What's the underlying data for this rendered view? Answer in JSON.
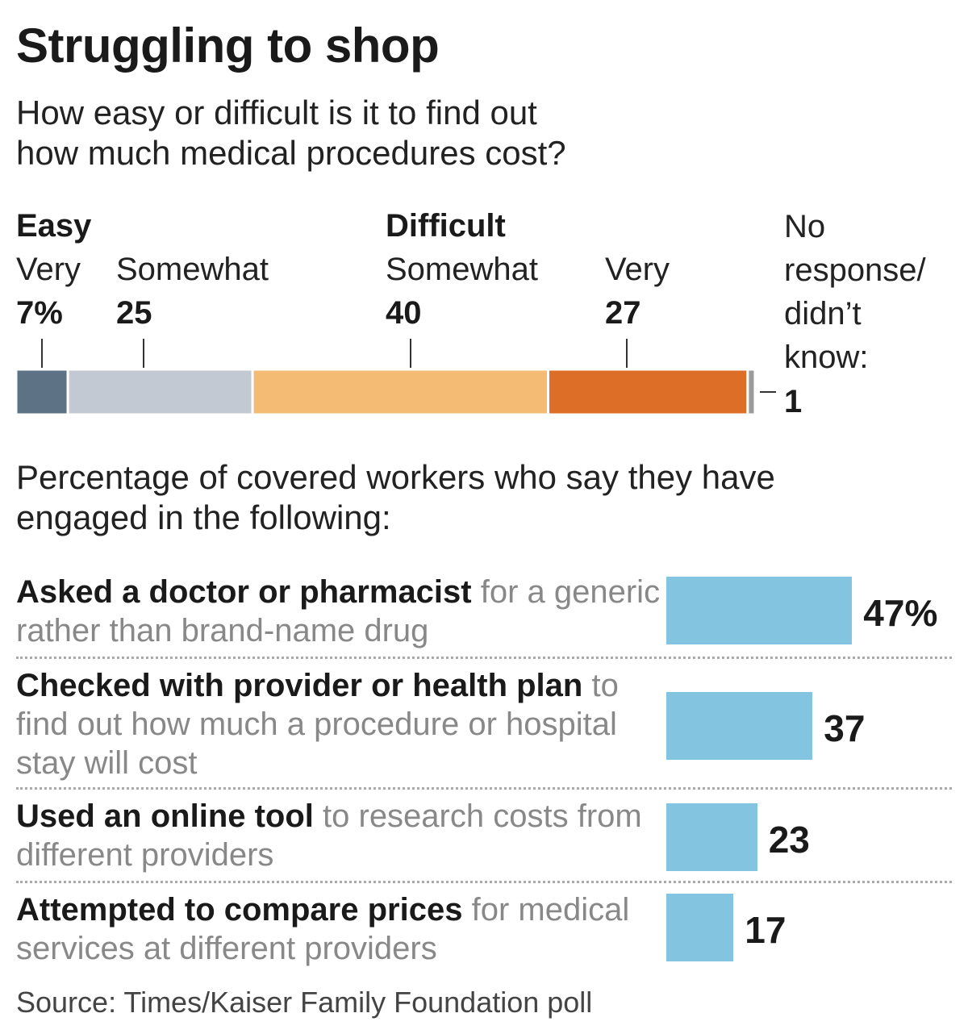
{
  "header": {
    "title": "Struggling to shop",
    "subtitle_lines": [
      "How easy or difficult is it to find out",
      "how much medical procedures cost?"
    ]
  },
  "chart_data": [
    {
      "type": "bar",
      "orientation": "horizontal-stacked",
      "title": "How easy or difficult is it to find out how much medical procedures cost?",
      "groups": [
        {
          "label": "Easy",
          "segments": [
            "Very",
            "Somewhat"
          ]
        },
        {
          "label": "Difficult",
          "segments": [
            "Somewhat",
            "Very"
          ]
        }
      ],
      "segments": [
        {
          "group": "Easy",
          "label": "Very",
          "value": 7,
          "display": "7%",
          "color": "#5d7385"
        },
        {
          "group": "Easy",
          "label": "Somewhat",
          "value": 25,
          "display": "25",
          "color": "#c3c9d2"
        },
        {
          "group": "Difficult",
          "label": "Somewhat",
          "value": 40,
          "display": "40",
          "color": "#f4bb74"
        },
        {
          "group": "Difficult",
          "label": "Very",
          "value": 27,
          "display": "27",
          "color": "#dd6e28"
        },
        {
          "group": "",
          "label_lines": [
            "No",
            "response/",
            "didn’t",
            "know:"
          ],
          "value": 1,
          "display": "1",
          "color": "#9b9b9b"
        }
      ],
      "xlim": [
        0,
        100
      ]
    },
    {
      "type": "bar",
      "orientation": "horizontal",
      "title": "Percentage of covered workers who say they have engaged in the following:",
      "title_lines": [
        "Percentage of covered workers who say they have",
        "engaged in the following:"
      ],
      "bar_color": "#83c5e0",
      "rows": [
        {
          "bold": "Asked a doctor or pharmacist",
          "rest": " for a generic rather than brand-name drug",
          "value": 47,
          "display": "47%"
        },
        {
          "bold": "Checked with provider or health plan",
          "rest": " to find out how much a procedure or hospital stay will cost",
          "value": 37,
          "display": "37"
        },
        {
          "bold": "Used an online tool",
          "rest": " to research costs from different providers",
          "value": 23,
          "display": "23"
        },
        {
          "bold": "Attempted to compare prices",
          "rest": " for medical services at different providers",
          "value": 17,
          "display": "17"
        }
      ]
    }
  ],
  "source": "Source: Times/Kaiser Family Foundation poll"
}
